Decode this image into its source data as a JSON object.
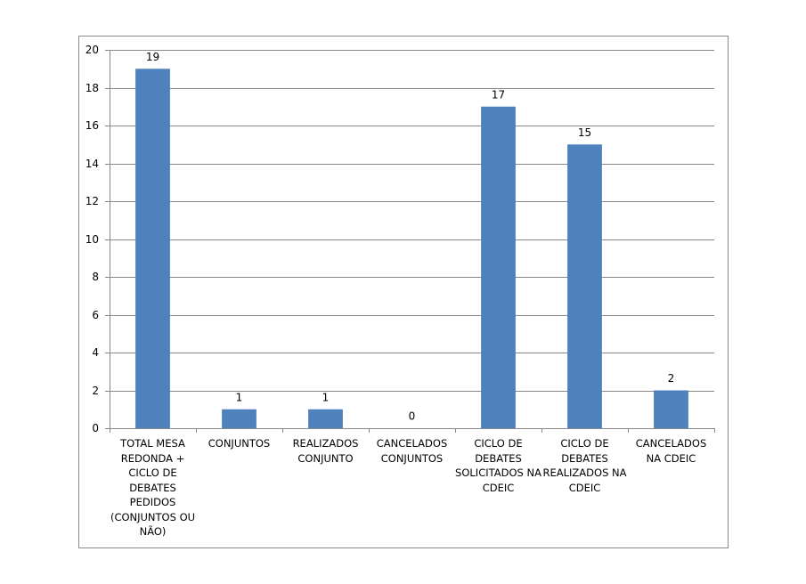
{
  "chart_data": {
    "type": "bar",
    "categories": [
      "TOTAL MESA REDONDA + CICLO DE DEBATES PEDIDOS (CONJUNTOS OU NÃO)",
      "CONJUNTOS",
      "REALIZADOS CONJUNTO",
      "CANCELADOS CONJUNTOS",
      "CICLO DE DEBATES SOLICITADOS NA CDEIC",
      "CICLO DE DEBATES REALIZADOS NA CDEIC",
      "CANCELADOS NA CDEIC"
    ],
    "values": [
      19,
      1,
      1,
      0,
      17,
      15,
      2
    ],
    "color": "#4f81bd",
    "ylim": [
      0,
      20
    ],
    "yticks": [
      0,
      2,
      4,
      6,
      8,
      10,
      12,
      14,
      16,
      18,
      20
    ],
    "grid": true
  }
}
